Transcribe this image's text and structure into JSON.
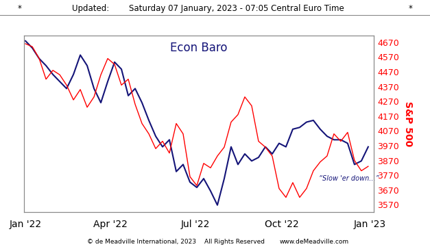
{
  "chart_data": {
    "type": "line",
    "title": "Econ Baro",
    "header": [
      "*",
      "Updated:",
      "Saturday 07 January, 2023 - 07:05 Central Euro Time",
      "*"
    ],
    "footer": [
      "© de Meadville International, 2023",
      "All Rights Reserved",
      "www.deMeadville.com"
    ],
    "annotation": "“Slow 'er down...”",
    "y2_label": "S&P 500",
    "x": [
      0,
      5,
      10,
      15,
      20,
      25,
      30,
      35,
      40,
      45,
      50,
      55,
      60,
      65,
      70,
      75,
      80,
      85,
      90,
      95,
      100,
      105,
      110,
      115,
      120,
      125,
      130,
      135,
      140,
      145,
      150,
      155,
      160,
      165,
      170,
      175,
      180,
      185,
      190,
      195,
      200,
      205,
      210,
      215,
      220,
      225,
      230,
      235,
      240,
      245,
      250
    ],
    "xlim": [
      -1,
      254
    ],
    "xticks": [
      {
        "value": 0,
        "label": "Jan '22"
      },
      {
        "value": 62,
        "label": "Apr '22"
      },
      {
        "value": 124,
        "label": "Jul '22"
      },
      {
        "value": 187,
        "label": "Oct '22"
      },
      {
        "value": 251,
        "label": "Jan '23"
      }
    ],
    "ylim": [
      0,
      100
    ],
    "yticks": [],
    "y2lim": [
      3520,
      4715
    ],
    "y2ticks": [
      3570,
      3670,
      3770,
      3870,
      3970,
      4070,
      4170,
      4270,
      4370,
      4470,
      4570,
      4670
    ],
    "grid": false,
    "series": [
      {
        "name": "Econ Baro",
        "color": "#141478",
        "type": "line",
        "values": [
          97,
          93,
          87,
          83,
          78,
          74,
          70,
          78,
          89,
          83,
          70,
          62,
          74,
          85,
          81,
          66,
          70,
          62,
          52,
          43,
          37,
          41,
          23,
          27,
          17,
          14,
          19,
          12,
          4,
          19,
          37,
          27,
          33,
          29,
          31,
          37,
          33,
          39,
          37,
          47,
          48,
          51,
          52,
          47,
          43,
          41,
          41,
          39,
          27,
          29,
          37
        ]
      },
      {
        "name": "S&P 500",
        "color": "#ff0000",
        "type": "line",
        "axis": "y2",
        "values": [
          4660,
          4640,
          4560,
          4420,
          4480,
          4450,
          4380,
          4280,
          4350,
          4230,
          4300,
          4450,
          4560,
          4520,
          4380,
          4420,
          4250,
          4120,
          4050,
          3950,
          4000,
          3920,
          4120,
          4050,
          3760,
          3700,
          3850,
          3820,
          3900,
          3960,
          4130,
          4180,
          4300,
          4240,
          4000,
          3960,
          3900,
          3680,
          3620,
          3720,
          3620,
          3680,
          3800,
          3860,
          3900,
          4050,
          4000,
          4060,
          3870,
          3800,
          3830
        ]
      }
    ]
  }
}
